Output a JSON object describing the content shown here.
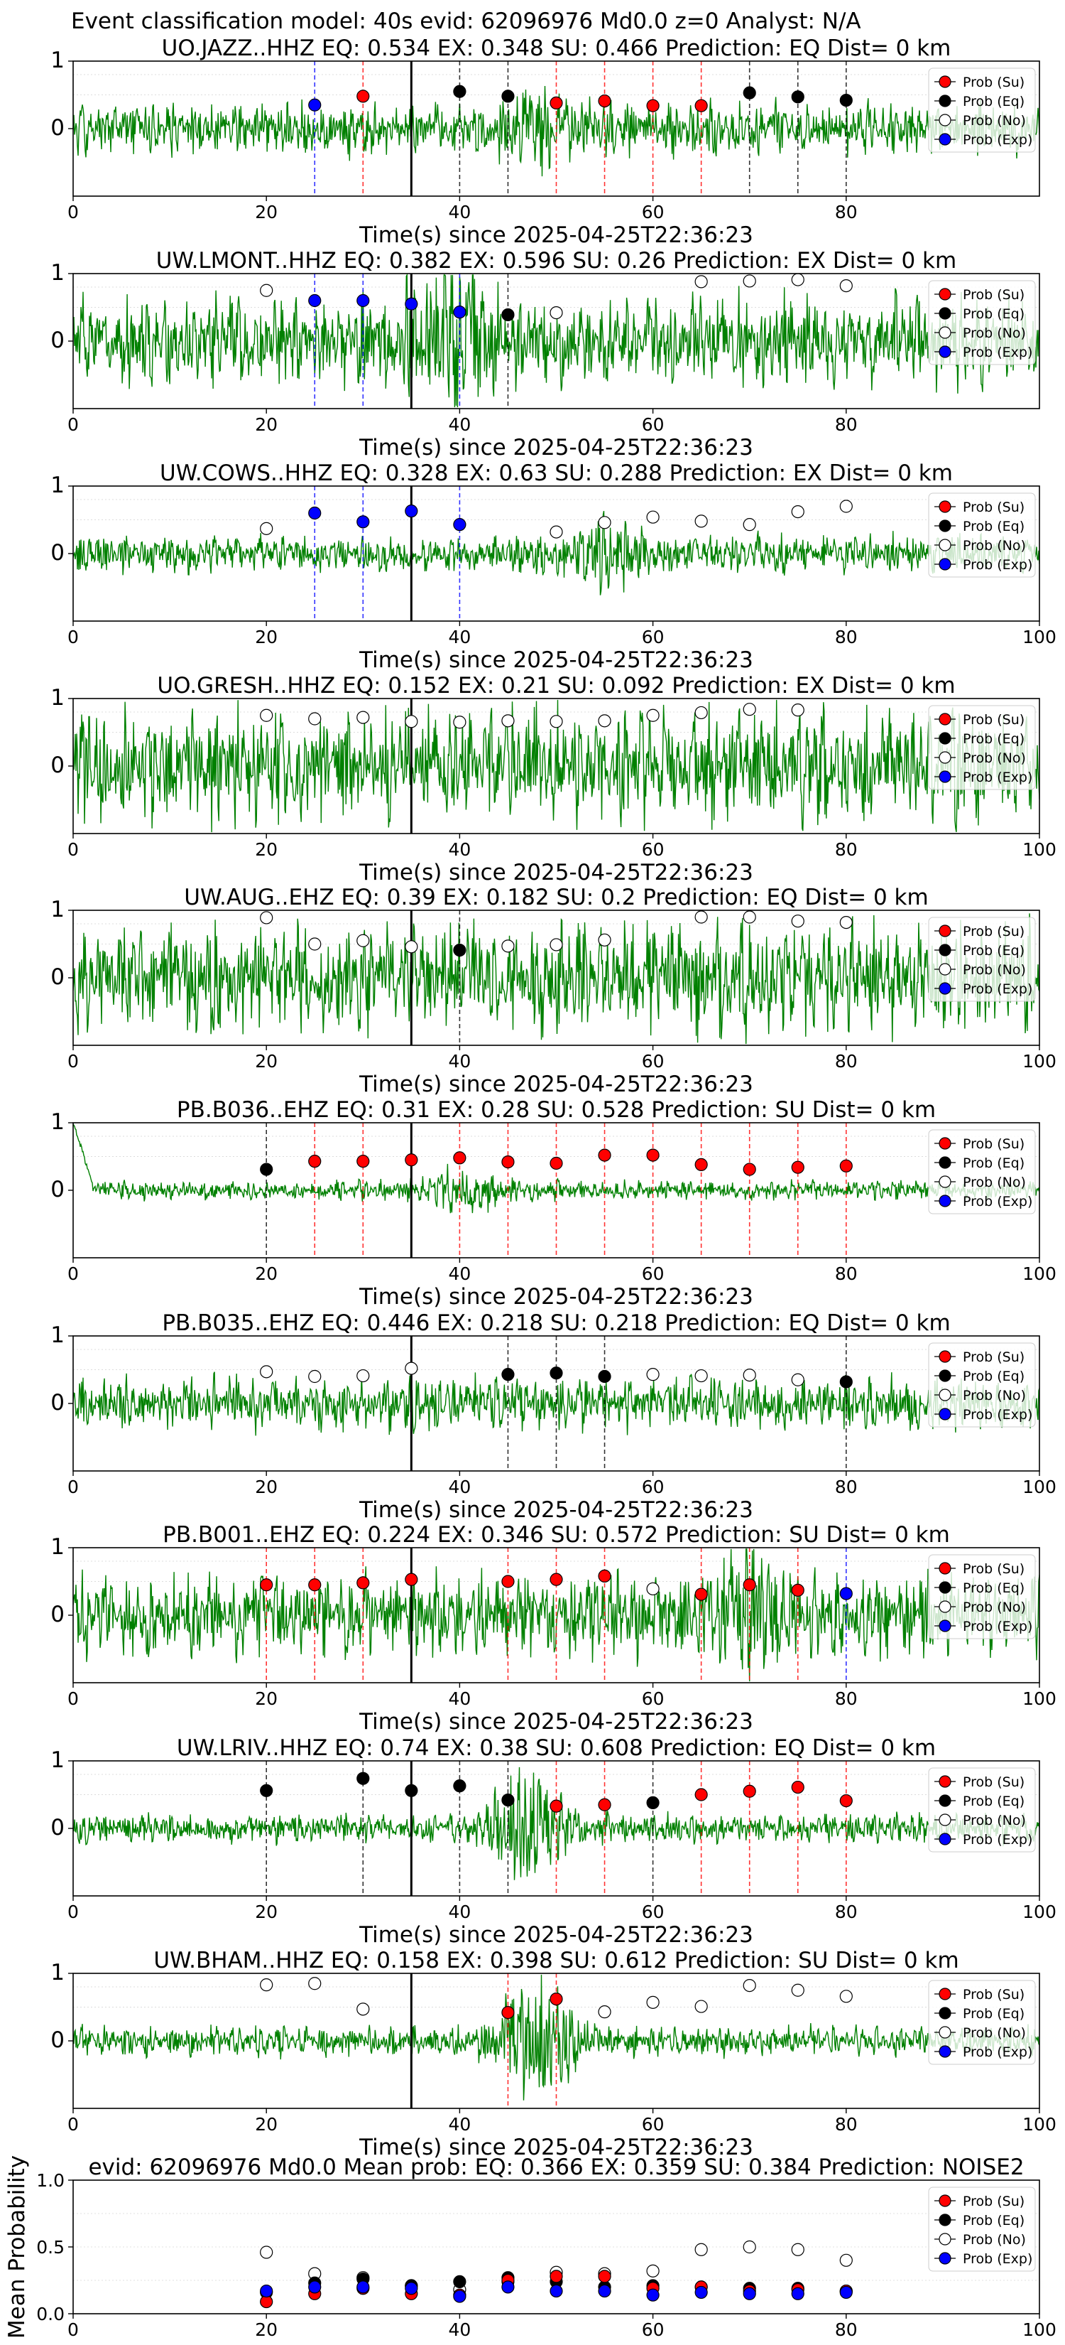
{
  "figure": {
    "suptitle": "Event classification model: 40s evid: 62096976 Md0.0 z=0 Analyst: N/A"
  },
  "legend": {
    "entries": [
      {
        "key": "su",
        "label": "Prob (Su)",
        "color": "#ff0000"
      },
      {
        "key": "eq",
        "label": "Prob (Eq)",
        "color": "#000000"
      },
      {
        "key": "no",
        "label": "Prob (No)",
        "color": "#ffffff"
      },
      {
        "key": "exp",
        "label": "Prob (Exp)",
        "color": "#0000ff"
      }
    ]
  },
  "colors": {
    "waveform": "#008000",
    "su_line": "#ff0000",
    "eq_line": "#000000",
    "exp_line": "#0000ff",
    "origin_line": "#000000"
  },
  "chart_data": [
    {
      "type": "line",
      "title": "UO.JAZZ..HHZ   EQ: 0.534  EX: 0.348  SU: 0.466   Prediction: EQ    Dist= 0 km",
      "xlabel": "Time(s) since 2025-04-25T22:36:23",
      "ylabel": "",
      "xlim": [
        0,
        100
      ],
      "ylim": [
        -1,
        1
      ],
      "xticks": [
        "0",
        "20",
        "40",
        "60",
        "80"
      ],
      "yticks": [
        "1",
        "0"
      ],
      "origin_time": 35,
      "waveform": {
        "amplitude": 0.35,
        "decay": 0,
        "burst_at": 48,
        "burst_amp": 0.2,
        "seed": 11
      },
      "windows": [
        {
          "t": 25,
          "class": "exp",
          "p": 0.35
        },
        {
          "t": 30,
          "class": "su",
          "p": 0.48
        },
        {
          "t": 40,
          "class": "eq",
          "p": 0.55
        },
        {
          "t": 45,
          "class": "eq",
          "p": 0.48
        },
        {
          "t": 50,
          "class": "su",
          "p": 0.38
        },
        {
          "t": 55,
          "class": "su",
          "p": 0.41
        },
        {
          "t": 60,
          "class": "su",
          "p": 0.34
        },
        {
          "t": 65,
          "class": "su",
          "p": 0.34
        },
        {
          "t": 70,
          "class": "eq",
          "p": 0.53
        },
        {
          "t": 75,
          "class": "eq",
          "p": 0.47
        },
        {
          "t": 80,
          "class": "eq",
          "p": 0.42
        }
      ]
    },
    {
      "type": "line",
      "title": "UW.LMONT..HHZ   EQ: 0.382  EX: 0.596  SU: 0.26   Prediction: EX    Dist= 0 km",
      "xlabel": "Time(s) since 2025-04-25T22:36:23",
      "ylabel": "",
      "xlim": [
        0,
        100
      ],
      "ylim": [
        -1,
        1
      ],
      "xticks": [
        "0",
        "20",
        "40",
        "60",
        "80"
      ],
      "yticks": [
        "1",
        "0"
      ],
      "origin_time": 35,
      "waveform": {
        "amplitude": 0.6,
        "decay": 0,
        "burst_at": 39,
        "burst_amp": 0.5,
        "seed": 23
      },
      "windows": [
        {
          "t": 20,
          "class": "no",
          "p": 0.75
        },
        {
          "t": 25,
          "class": "exp",
          "p": 0.6
        },
        {
          "t": 30,
          "class": "exp",
          "p": 0.6
        },
        {
          "t": 35,
          "class": "exp",
          "p": 0.55
        },
        {
          "t": 40,
          "class": "exp",
          "p": 0.43
        },
        {
          "t": 45,
          "class": "eq",
          "p": 0.39
        },
        {
          "t": 50,
          "class": "no",
          "p": 0.42
        },
        {
          "t": 65,
          "class": "no",
          "p": 0.88
        },
        {
          "t": 70,
          "class": "no",
          "p": 0.89
        },
        {
          "t": 75,
          "class": "no",
          "p": 0.91
        },
        {
          "t": 80,
          "class": "no",
          "p": 0.82
        }
      ]
    },
    {
      "type": "line",
      "title": "UW.COWS..HHZ   EQ: 0.328  EX: 0.63  SU: 0.288   Prediction: EX    Dist= 0 km",
      "xlabel": "Time(s) since 2025-04-25T22:36:23",
      "ylabel": "",
      "xlim": [
        0,
        100
      ],
      "ylim": [
        -1,
        1
      ],
      "xticks": [
        "0",
        "20",
        "40",
        "60",
        "80",
        "100"
      ],
      "yticks": [
        "1",
        "0"
      ],
      "origin_time": 35,
      "waveform": {
        "amplitude": 0.25,
        "decay": 0,
        "burst_at": 55,
        "burst_amp": 0.25,
        "seed": 37
      },
      "windows": [
        {
          "t": 20,
          "class": "no",
          "p": 0.37
        },
        {
          "t": 25,
          "class": "exp",
          "p": 0.6
        },
        {
          "t": 30,
          "class": "exp",
          "p": 0.47
        },
        {
          "t": 35,
          "class": "exp",
          "p": 0.63
        },
        {
          "t": 40,
          "class": "exp",
          "p": 0.43
        },
        {
          "t": 50,
          "class": "no",
          "p": 0.32
        },
        {
          "t": 55,
          "class": "no",
          "p": 0.46
        },
        {
          "t": 60,
          "class": "no",
          "p": 0.54
        },
        {
          "t": 65,
          "class": "no",
          "p": 0.48
        },
        {
          "t": 70,
          "class": "no",
          "p": 0.43
        },
        {
          "t": 75,
          "class": "no",
          "p": 0.62
        },
        {
          "t": 80,
          "class": "no",
          "p": 0.7
        }
      ]
    },
    {
      "type": "line",
      "title": "UO.GRESH..HHZ   EQ: 0.152  EX: 0.21  SU: 0.092   Prediction: EX    Dist= 0 km",
      "xlabel": "Time(s) since 2025-04-25T22:36:23",
      "ylabel": "",
      "xlim": [
        0,
        100
      ],
      "ylim": [
        -1,
        1
      ],
      "xticks": [
        "0",
        "20",
        "40",
        "60",
        "80",
        "100"
      ],
      "yticks": [
        "1",
        "0"
      ],
      "origin_time": 35,
      "waveform": {
        "amplitude": 0.75,
        "decay": 0,
        "burst_at": -1,
        "burst_amp": 0,
        "seed": 41
      },
      "windows": [
        {
          "t": 20,
          "class": "no",
          "p": 0.75
        },
        {
          "t": 25,
          "class": "no",
          "p": 0.7
        },
        {
          "t": 30,
          "class": "no",
          "p": 0.72
        },
        {
          "t": 35,
          "class": "no",
          "p": 0.66
        },
        {
          "t": 40,
          "class": "no",
          "p": 0.65
        },
        {
          "t": 45,
          "class": "no",
          "p": 0.67
        },
        {
          "t": 50,
          "class": "no",
          "p": 0.66
        },
        {
          "t": 55,
          "class": "no",
          "p": 0.67
        },
        {
          "t": 60,
          "class": "no",
          "p": 0.75
        },
        {
          "t": 65,
          "class": "no",
          "p": 0.79
        },
        {
          "t": 70,
          "class": "no",
          "p": 0.84
        },
        {
          "t": 75,
          "class": "no",
          "p": 0.83
        }
      ]
    },
    {
      "type": "line",
      "title": "UW.AUG..EHZ   EQ: 0.39  EX: 0.182  SU: 0.2   Prediction: EQ    Dist= 0 km",
      "xlabel": "Time(s) since 2025-04-25T22:36:23",
      "ylabel": "",
      "xlim": [
        0,
        100
      ],
      "ylim": [
        -1,
        1
      ],
      "xticks": [
        "0",
        "20",
        "40",
        "60",
        "80",
        "100"
      ],
      "yticks": [
        "1",
        "0"
      ],
      "origin_time": 35,
      "waveform": {
        "amplitude": 0.75,
        "decay": 0,
        "burst_at": -1,
        "burst_amp": 0,
        "seed": 53
      },
      "windows": [
        {
          "t": 20,
          "class": "no",
          "p": 0.89
        },
        {
          "t": 25,
          "class": "no",
          "p": 0.5
        },
        {
          "t": 30,
          "class": "no",
          "p": 0.55
        },
        {
          "t": 35,
          "class": "no",
          "p": 0.46
        },
        {
          "t": 40,
          "class": "eq",
          "p": 0.41
        },
        {
          "t": 45,
          "class": "no",
          "p": 0.47
        },
        {
          "t": 50,
          "class": "no",
          "p": 0.49
        },
        {
          "t": 55,
          "class": "no",
          "p": 0.56
        },
        {
          "t": 65,
          "class": "no",
          "p": 0.9
        },
        {
          "t": 70,
          "class": "no",
          "p": 0.9
        },
        {
          "t": 75,
          "class": "no",
          "p": 0.84
        },
        {
          "t": 80,
          "class": "no",
          "p": 0.82
        }
      ]
    },
    {
      "type": "line",
      "title": "PB.B036..EHZ   EQ: 0.31  EX: 0.28  SU: 0.528   Prediction: SU    Dist= 0 km",
      "xlabel": "Time(s) since 2025-04-25T22:36:23",
      "ylabel": "",
      "xlim": [
        0,
        100
      ],
      "ylim": [
        -1,
        1
      ],
      "xticks": [
        "0",
        "20",
        "40",
        "60",
        "80",
        "100"
      ],
      "yticks": [
        "1",
        "0"
      ],
      "origin_time": 35,
      "waveform": {
        "amplitude": 0.13,
        "decay": 1,
        "burst_at": 40,
        "burst_amp": 0.2,
        "seed": 61
      },
      "windows": [
        {
          "t": 20,
          "class": "eq",
          "p": 0.31
        },
        {
          "t": 25,
          "class": "su",
          "p": 0.43
        },
        {
          "t": 30,
          "class": "su",
          "p": 0.43
        },
        {
          "t": 35,
          "class": "su",
          "p": 0.45
        },
        {
          "t": 40,
          "class": "su",
          "p": 0.48
        },
        {
          "t": 45,
          "class": "su",
          "p": 0.42
        },
        {
          "t": 50,
          "class": "su",
          "p": 0.4
        },
        {
          "t": 55,
          "class": "su",
          "p": 0.52
        },
        {
          "t": 60,
          "class": "su",
          "p": 0.52
        },
        {
          "t": 65,
          "class": "su",
          "p": 0.38
        },
        {
          "t": 70,
          "class": "su",
          "p": 0.31
        },
        {
          "t": 75,
          "class": "su",
          "p": 0.34
        },
        {
          "t": 80,
          "class": "su",
          "p": 0.36
        }
      ]
    },
    {
      "type": "line",
      "title": "PB.B035..EHZ   EQ: 0.446  EX: 0.218  SU: 0.218   Prediction: EQ    Dist= 0 km",
      "xlabel": "Time(s) since 2025-04-25T22:36:23",
      "ylabel": "",
      "xlim": [
        0,
        100
      ],
      "ylim": [
        -1,
        1
      ],
      "xticks": [
        "0",
        "20",
        "40",
        "60",
        "80",
        "100"
      ],
      "yticks": [
        "1",
        "0"
      ],
      "origin_time": 35,
      "waveform": {
        "amplitude": 0.35,
        "decay": 0,
        "burst_at": -1,
        "burst_amp": 0,
        "seed": 71
      },
      "windows": [
        {
          "t": 20,
          "class": "no",
          "p": 0.47
        },
        {
          "t": 25,
          "class": "no",
          "p": 0.4
        },
        {
          "t": 30,
          "class": "no",
          "p": 0.41
        },
        {
          "t": 35,
          "class": "no",
          "p": 0.52
        },
        {
          "t": 45,
          "class": "eq",
          "p": 0.43
        },
        {
          "t": 50,
          "class": "eq",
          "p": 0.45
        },
        {
          "t": 55,
          "class": "eq",
          "p": 0.4
        },
        {
          "t": 60,
          "class": "no",
          "p": 0.43
        },
        {
          "t": 65,
          "class": "no",
          "p": 0.41
        },
        {
          "t": 70,
          "class": "no",
          "p": 0.42
        },
        {
          "t": 75,
          "class": "no",
          "p": 0.35
        },
        {
          "t": 80,
          "class": "eq",
          "p": 0.32
        }
      ]
    },
    {
      "type": "line",
      "title": "PB.B001..EHZ   EQ: 0.224  EX: 0.346  SU: 0.572   Prediction: SU    Dist= 0 km",
      "xlabel": "Time(s) since 2025-04-25T22:36:23",
      "ylabel": "",
      "xlim": [
        0,
        100
      ],
      "ylim": [
        -1,
        1
      ],
      "xticks": [
        "0",
        "20",
        "40",
        "60",
        "80",
        "100"
      ],
      "yticks": [
        "1",
        "0"
      ],
      "origin_time": 35,
      "waveform": {
        "amplitude": 0.55,
        "decay": 0,
        "burst_at": 70,
        "burst_amp": 0.4,
        "seed": 83
      },
      "windows": [
        {
          "t": 20,
          "class": "su",
          "p": 0.45
        },
        {
          "t": 25,
          "class": "su",
          "p": 0.45
        },
        {
          "t": 30,
          "class": "su",
          "p": 0.48
        },
        {
          "t": 35,
          "class": "su",
          "p": 0.53
        },
        {
          "t": 45,
          "class": "su",
          "p": 0.5
        },
        {
          "t": 50,
          "class": "su",
          "p": 0.53
        },
        {
          "t": 55,
          "class": "su",
          "p": 0.58
        },
        {
          "t": 60,
          "class": "no",
          "p": 0.39
        },
        {
          "t": 65,
          "class": "su",
          "p": 0.31
        },
        {
          "t": 70,
          "class": "su",
          "p": 0.45
        },
        {
          "t": 75,
          "class": "su",
          "p": 0.37
        },
        {
          "t": 80,
          "class": "exp",
          "p": 0.32
        }
      ]
    },
    {
      "type": "line",
      "title": "UW.LRIV..HHZ   EQ: 0.74  EX: 0.38  SU: 0.608   Prediction: EQ    Dist= 0 km",
      "xlabel": "Time(s) since 2025-04-25T22:36:23",
      "ylabel": "",
      "xlim": [
        0,
        100
      ],
      "ylim": [
        -1,
        1
      ],
      "xticks": [
        "0",
        "20",
        "40",
        "60",
        "80",
        "100"
      ],
      "yticks": [
        "1",
        "0"
      ],
      "origin_time": 35,
      "waveform": {
        "amplitude": 0.2,
        "decay": 0,
        "burst_at": 47,
        "burst_amp": 0.55,
        "seed": 97
      },
      "windows": [
        {
          "t": 20,
          "class": "eq",
          "p": 0.56
        },
        {
          "t": 30,
          "class": "eq",
          "p": 0.74
        },
        {
          "t": 35,
          "class": "eq",
          "p": 0.56
        },
        {
          "t": 40,
          "class": "eq",
          "p": 0.63
        },
        {
          "t": 45,
          "class": "eq",
          "p": 0.42
        },
        {
          "t": 50,
          "class": "su",
          "p": 0.33
        },
        {
          "t": 55,
          "class": "su",
          "p": 0.35
        },
        {
          "t": 60,
          "class": "eq",
          "p": 0.38
        },
        {
          "t": 65,
          "class": "su",
          "p": 0.5
        },
        {
          "t": 70,
          "class": "su",
          "p": 0.55
        },
        {
          "t": 75,
          "class": "su",
          "p": 0.61
        },
        {
          "t": 80,
          "class": "su",
          "p": 0.41
        }
      ]
    },
    {
      "type": "line",
      "title": "UW.BHAM..HHZ   EQ: 0.158  EX: 0.398  SU: 0.612   Prediction: SU    Dist= 0 km",
      "xlabel": "Time(s) since 2025-04-25T22:36:23",
      "ylabel": "",
      "xlim": [
        0,
        100
      ],
      "ylim": [
        -1,
        1
      ],
      "xticks": [
        "0",
        "20",
        "40",
        "60",
        "80",
        "100"
      ],
      "yticks": [
        "1",
        "0"
      ],
      "origin_time": 35,
      "waveform": {
        "amplitude": 0.2,
        "decay": 0,
        "burst_at": 48,
        "burst_amp": 0.7,
        "seed": 101
      },
      "windows": [
        {
          "t": 20,
          "class": "no",
          "p": 0.83
        },
        {
          "t": 25,
          "class": "no",
          "p": 0.85
        },
        {
          "t": 30,
          "class": "no",
          "p": 0.47
        },
        {
          "t": 45,
          "class": "su",
          "p": 0.42
        },
        {
          "t": 50,
          "class": "su",
          "p": 0.62
        },
        {
          "t": 55,
          "class": "no",
          "p": 0.43
        },
        {
          "t": 60,
          "class": "no",
          "p": 0.57
        },
        {
          "t": 65,
          "class": "no",
          "p": 0.51
        },
        {
          "t": 70,
          "class": "no",
          "p": 0.82
        },
        {
          "t": 75,
          "class": "no",
          "p": 0.75
        },
        {
          "t": 80,
          "class": "no",
          "p": 0.66
        }
      ]
    },
    {
      "type": "scatter",
      "title": "evid: 62096976  Md0.0   Mean prob:   EQ: 0.366  EX: 0.359  SU: 0.384   Prediction: NOISE2",
      "xlabel": "",
      "ylabel": "Mean Probability",
      "xlim": [
        0,
        100
      ],
      "ylim": [
        0,
        1
      ],
      "xticks": [
        "0",
        "20",
        "40",
        "60",
        "80",
        "100"
      ],
      "yticks": [
        "0.0",
        "0.5",
        "1.0"
      ],
      "grid": true,
      "x": [
        20,
        25,
        30,
        35,
        40,
        45,
        50,
        55,
        60,
        65,
        70,
        75,
        80
      ],
      "series": [
        {
          "key": "no",
          "name": "Prob (No)",
          "values": [
            0.46,
            0.3,
            0.27,
            0.21,
            0.18,
            0.24,
            0.31,
            0.3,
            0.32,
            0.48,
            0.5,
            0.48,
            0.4
          ]
        },
        {
          "key": "eq",
          "name": "Prob (Eq)",
          "values": [
            0.16,
            0.23,
            0.26,
            0.21,
            0.24,
            0.27,
            0.24,
            0.2,
            0.21,
            0.2,
            0.19,
            0.19,
            0.17
          ]
        },
        {
          "key": "su",
          "name": "Prob (Su)",
          "values": [
            0.09,
            0.15,
            0.19,
            0.15,
            0.14,
            0.25,
            0.28,
            0.28,
            0.19,
            0.2,
            0.17,
            0.18,
            0.17
          ]
        },
        {
          "key": "exp",
          "name": "Prob (Exp)",
          "values": [
            0.17,
            0.2,
            0.2,
            0.19,
            0.13,
            0.2,
            0.17,
            0.17,
            0.14,
            0.16,
            0.15,
            0.15,
            0.16
          ]
        }
      ]
    }
  ]
}
